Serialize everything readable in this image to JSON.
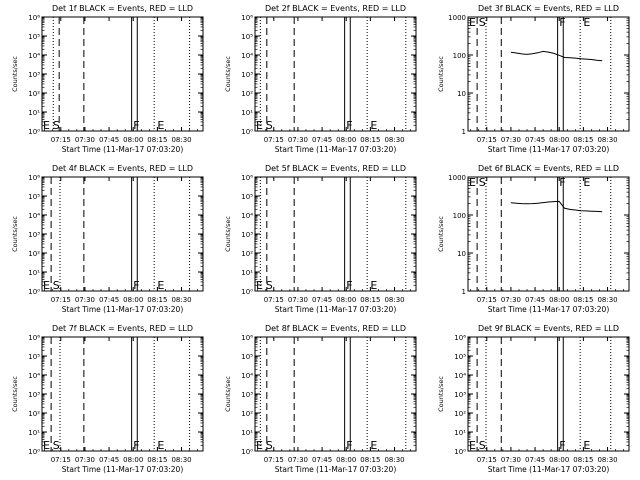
{
  "chart_data": [
    {
      "type": "line",
      "title": "Det 1f BLACK = Events, RED = LLD",
      "xlabel": "Start Time (11-Mar-17 07:03:20)",
      "ylabel": "Counts/sec",
      "yscale": "log",
      "ylim": [
        1,
        1000000
      ],
      "y_tick_labels": [
        "10⁰",
        "10¹",
        "10²",
        "10³",
        "10⁴",
        "10⁵",
        "10⁶"
      ],
      "xlim": [
        "07:03:20",
        "08:43:20"
      ],
      "x_tick_labels": [
        "07:15",
        "07:30",
        "07:45",
        "08:00",
        "08:15",
        "08:30"
      ],
      "markers": {
        "E": "07:03:20",
        "S": "07:10:00",
        "F": "08:00:00",
        "E2": "08:15:00"
      },
      "solid_lines": [
        "07:59:00",
        "08:02:30"
      ],
      "dashed_lines": [
        "07:14:00",
        "07:29:20"
      ],
      "dotted_lines": [
        "07:10:20",
        "08:13:00",
        "08:35:00"
      ],
      "series": []
    },
    {
      "type": "line",
      "title": "Det 2f BLACK = Events, RED = LLD",
      "xlabel": "Start Time (11-Mar-17 07:03:20)",
      "ylabel": "Counts/sec",
      "yscale": "log",
      "ylim": [
        1,
        1000000
      ],
      "y_tick_labels": [
        "10⁰",
        "10¹",
        "10²",
        "10³",
        "10⁴",
        "10⁵",
        "10⁶"
      ],
      "xlim": [
        "07:03:20",
        "08:43:20"
      ],
      "x_tick_labels": [
        "07:15",
        "07:30",
        "07:45",
        "08:00",
        "08:15",
        "08:30"
      ],
      "markers": {
        "E": "07:03:20",
        "S": "07:10:00",
        "F": "08:00:00",
        "E2": "08:15:00"
      },
      "solid_lines": [
        "07:59:00",
        "08:02:30"
      ],
      "dashed_lines": [
        "07:10:40",
        "07:27:40"
      ],
      "dotted_lines": [
        "07:06:40",
        "08:13:00",
        "08:37:00"
      ],
      "series": []
    },
    {
      "type": "line",
      "title": "Det 3f BLACK = Events, RED = LLD",
      "xlabel": "Start Time (11-Mar-17 07:03:20)",
      "ylabel": "Counts/sec",
      "yscale": "log",
      "ylim": [
        1,
        1000
      ],
      "y_tick_labels": [
        "1",
        "10",
        "100",
        "1000"
      ],
      "xlim": [
        "07:03:20",
        "08:43:20"
      ],
      "x_tick_labels": [
        "07:15",
        "07:30",
        "07:45",
        "08:00",
        "08:15",
        "08:30"
      ],
      "markers": {
        "E": "07:03:20",
        "S": "07:10:00",
        "F": "08:00:00",
        "E2": "08:15:00"
      },
      "solid_lines": [
        "07:59:00",
        "08:02:30"
      ],
      "dashed_lines": [
        "07:09:00",
        "07:24:00"
      ],
      "dotted_lines": [
        "07:14:30",
        "08:13:00",
        "08:32:00"
      ],
      "series": [
        {
          "x": [
            "07:30:00",
            "07:33:20",
            "07:36:40",
            "07:40:00",
            "07:43:20",
            "07:46:40",
            "07:50:00",
            "07:53:20",
            "07:56:40",
            "08:00:00",
            "08:03:20",
            "08:06:40",
            "08:10:00",
            "08:13:20",
            "08:16:40",
            "08:20:00",
            "08:23:20",
            "08:26:40"
          ],
          "values": [
            118,
            113,
            107,
            104,
            108,
            114,
            124,
            119,
            110,
            98,
            86,
            85,
            83,
            80,
            78,
            76,
            73,
            71
          ]
        }
      ]
    },
    {
      "type": "line",
      "title": "Det 4f BLACK = Events, RED = LLD",
      "xlabel": "Start Time (11-Mar-17 07:03:20)",
      "ylabel": "Counts/sec",
      "yscale": "log",
      "ylim": [
        1,
        1000000
      ],
      "y_tick_labels": [
        "10⁰",
        "10¹",
        "10²",
        "10³",
        "10⁴",
        "10⁵",
        "10⁶"
      ],
      "xlim": [
        "07:03:20",
        "08:43:20"
      ],
      "x_tick_labels": [
        "07:15",
        "07:30",
        "07:45",
        "08:00",
        "08:15",
        "08:30"
      ],
      "markers": {
        "E": "07:03:20",
        "S": "07:10:00",
        "F": "08:00:00",
        "E2": "08:15:00"
      },
      "solid_lines": [
        "07:59:00",
        "08:02:30"
      ],
      "dashed_lines": [
        "07:09:00",
        "07:29:20"
      ],
      "dotted_lines": [
        "07:14:30",
        "08:13:00",
        "08:35:00"
      ],
      "series": []
    },
    {
      "type": "line",
      "title": "Det 5f BLACK = Events, RED = LLD",
      "xlabel": "Start Time (11-Mar-17 07:03:20)",
      "ylabel": "Counts/sec",
      "yscale": "log",
      "ylim": [
        1,
        1000000
      ],
      "y_tick_labels": [
        "10⁰",
        "10¹",
        "10²",
        "10³",
        "10⁴",
        "10⁵",
        "10⁶"
      ],
      "xlim": [
        "07:03:20",
        "08:43:20"
      ],
      "x_tick_labels": [
        "07:15",
        "07:30",
        "07:45",
        "08:00",
        "08:15",
        "08:30"
      ],
      "markers": {
        "E": "07:03:20",
        "S": "07:10:00",
        "F": "08:00:00",
        "E2": "08:15:00"
      },
      "solid_lines": [
        "07:59:00",
        "08:02:30"
      ],
      "dashed_lines": [
        "07:10:40",
        "07:27:40"
      ],
      "dotted_lines": [
        "07:06:40",
        "08:13:00",
        "08:37:00"
      ],
      "series": []
    },
    {
      "type": "line",
      "title": "Det 6f BLACK = Events, RED = LLD",
      "xlabel": "Start Time (11-Mar-17 07:03:20)",
      "ylabel": "Counts/sec",
      "yscale": "log",
      "ylim": [
        1,
        1000
      ],
      "y_tick_labels": [
        "1",
        "10",
        "100",
        "1000"
      ],
      "xlim": [
        "07:03:20",
        "08:43:20"
      ],
      "x_tick_labels": [
        "07:15",
        "07:30",
        "07:45",
        "08:00",
        "08:15",
        "08:30"
      ],
      "markers": {
        "E": "07:03:20",
        "S": "07:10:00",
        "F": "08:00:00",
        "E2": "08:15:00"
      },
      "solid_lines": [
        "07:59:00",
        "08:02:30"
      ],
      "dashed_lines": [
        "07:09:00",
        "07:24:00"
      ],
      "dotted_lines": [
        "07:14:30",
        "08:13:00",
        "08:32:00"
      ],
      "series": [
        {
          "x": [
            "07:30:00",
            "07:33:20",
            "07:36:40",
            "07:40:00",
            "07:43:20",
            "07:46:40",
            "07:50:00",
            "07:53:20",
            "07:56:40",
            "08:00:00",
            "08:03:20",
            "08:06:40",
            "08:10:00",
            "08:13:20",
            "08:16:40",
            "08:20:00",
            "08:23:20",
            "08:26:40"
          ],
          "values": [
            210,
            205,
            200,
            198,
            200,
            205,
            212,
            220,
            225,
            228,
            150,
            140,
            135,
            130,
            128,
            126,
            124,
            122
          ]
        }
      ]
    },
    {
      "type": "line",
      "title": "Det 7f BLACK = Events, RED = LLD",
      "xlabel": "Start Time (11-Mar-17 07:03:20)",
      "ylabel": "Counts/sec",
      "yscale": "log",
      "ylim": [
        1,
        1000000
      ],
      "y_tick_labels": [
        "10⁰",
        "10¹",
        "10²",
        "10³",
        "10⁴",
        "10⁵",
        "10⁶"
      ],
      "xlim": [
        "07:03:20",
        "08:43:20"
      ],
      "x_tick_labels": [
        "07:15",
        "07:30",
        "07:45",
        "08:00",
        "08:15",
        "08:30"
      ],
      "markers": {
        "E": "07:03:20",
        "S": "07:10:00",
        "F": "08:00:00",
        "E2": "08:15:00"
      },
      "solid_lines": [
        "07:59:00",
        "08:02:30"
      ],
      "dashed_lines": [
        "07:09:00",
        "07:29:20"
      ],
      "dotted_lines": [
        "07:14:30",
        "08:13:00",
        "08:35:00"
      ],
      "series": []
    },
    {
      "type": "line",
      "title": "Det 8f BLACK = Events, RED = LLD",
      "xlabel": "Start Time (11-Mar-17 07:03:20)",
      "ylabel": "Counts/sec",
      "yscale": "log",
      "ylim": [
        1,
        1000000
      ],
      "y_tick_labels": [
        "10⁰",
        "10¹",
        "10²",
        "10³",
        "10⁴",
        "10⁵",
        "10⁶"
      ],
      "xlim": [
        "07:03:20",
        "08:43:20"
      ],
      "x_tick_labels": [
        "07:15",
        "07:30",
        "07:45",
        "08:00",
        "08:15",
        "08:30"
      ],
      "markers": {
        "E": "07:03:20",
        "S": "07:10:00",
        "F": "08:00:00",
        "E2": "08:15:00"
      },
      "solid_lines": [
        "07:59:00",
        "08:02:30"
      ],
      "dashed_lines": [
        "07:10:40",
        "07:27:40"
      ],
      "dotted_lines": [
        "07:06:40",
        "08:13:00",
        "08:37:00"
      ],
      "series": []
    },
    {
      "type": "line",
      "title": "Det 9f BLACK = Events, RED = LLD",
      "xlabel": "Start Time (11-Mar-17 07:03:20)",
      "ylabel": "Counts/sec",
      "yscale": "log",
      "ylim": [
        1,
        1000000
      ],
      "y_tick_labels": [
        "10⁰",
        "10¹",
        "10²",
        "10³",
        "10⁴",
        "10⁵",
        "10⁶"
      ],
      "xlim": [
        "07:03:20",
        "08:43:20"
      ],
      "x_tick_labels": [
        "07:15",
        "07:30",
        "07:45",
        "08:00",
        "08:15",
        "08:30"
      ],
      "markers": {
        "E": "07:03:20",
        "S": "07:10:00",
        "F": "08:00:00",
        "E2": "08:15:00"
      },
      "solid_lines": [
        "07:59:00",
        "08:02:30"
      ],
      "dashed_lines": [
        "07:09:00",
        "07:24:00"
      ],
      "dotted_lines": [
        "07:14:30",
        "08:13:00",
        "08:32:00"
      ],
      "series": []
    }
  ]
}
